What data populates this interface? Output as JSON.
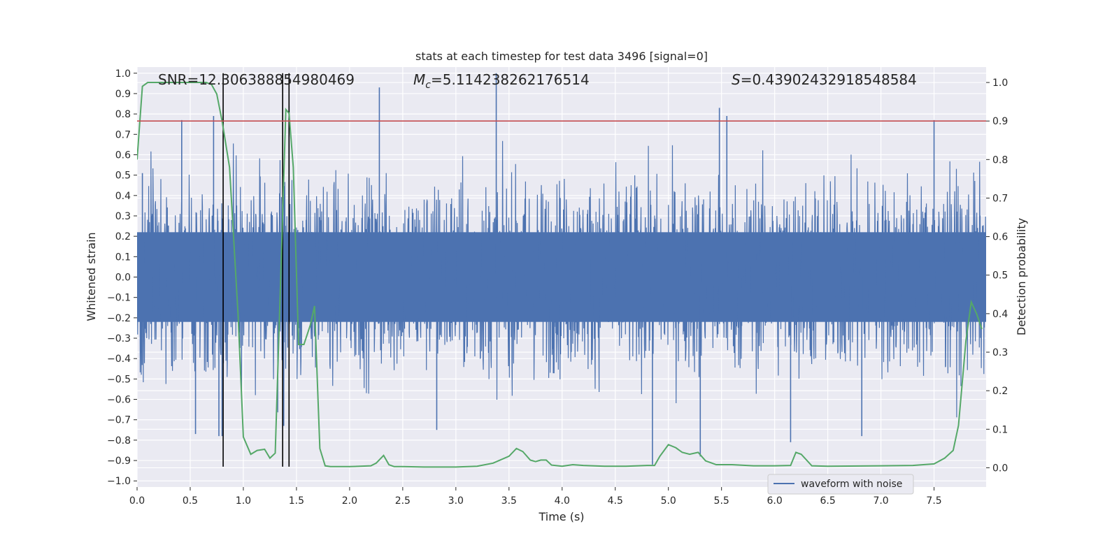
{
  "chart_data": {
    "type": "line",
    "title": "stats at each timestep for test data 3496 [signal=0]",
    "xlabel": "Time (s)",
    "ylabel_left": "Whitened strain",
    "ylabel_right": "Detection probability",
    "xlim": [
      0.0,
      7.99
    ],
    "ylim_left": [
      -1.03,
      1.03
    ],
    "ylim_right": [
      -0.05,
      1.04
    ],
    "x_ticks": [
      "0.0",
      "0.5",
      "1.0",
      "1.5",
      "2.0",
      "2.5",
      "3.0",
      "3.5",
      "4.0",
      "4.5",
      "5.0",
      "5.5",
      "6.0",
      "6.5",
      "7.0",
      "7.5"
    ],
    "y_ticks_left": [
      "-1.0",
      "-0.9",
      "-0.8",
      "-0.7",
      "-0.6",
      "-0.5",
      "-0.4",
      "-0.3",
      "-0.2",
      "-0.1",
      "0.0",
      "0.1",
      "0.2",
      "0.3",
      "0.4",
      "0.5",
      "0.6",
      "0.7",
      "0.8",
      "0.9",
      "1.0"
    ],
    "y_ticks_right": [
      "0.0",
      "0.1",
      "0.2",
      "0.3",
      "0.4",
      "0.5",
      "0.6",
      "0.7",
      "0.8",
      "0.9",
      "1.0"
    ],
    "grid": true,
    "legend_position": "lower-right",
    "annotations": {
      "snr": "SNR=12.306388854980469",
      "mc_symbol": "M",
      "mc_sub": "c",
      "mc_value": "=5.114238262176514",
      "s_symbol": "S",
      "s_value": "=0.43902432918548584"
    },
    "series": [
      {
        "name": "waveform with noise",
        "kind": "noise_band",
        "color": "#4c72b0",
        "approx_amplitude_range": [
          -0.62,
          0.62
        ],
        "peak_values": [
          {
            "x": 0.05,
            "y": 0.51
          },
          {
            "x": 0.42,
            "y": 0.77
          },
          {
            "x": 0.72,
            "y": 0.79
          },
          {
            "x": 1.43,
            "y": 0.84
          },
          {
            "x": 2.28,
            "y": 0.93
          },
          {
            "x": 3.38,
            "y": 1.0
          },
          {
            "x": 5.48,
            "y": 0.83
          },
          {
            "x": 5.55,
            "y": 0.79
          },
          {
            "x": 7.5,
            "y": 0.77
          }
        ],
        "trough_values": [
          {
            "x": 0.55,
            "y": -0.77
          },
          {
            "x": 0.77,
            "y": -0.78
          },
          {
            "x": 0.8,
            "y": -0.78
          },
          {
            "x": 1.38,
            "y": -0.73
          },
          {
            "x": 2.82,
            "y": -0.75
          },
          {
            "x": 4.85,
            "y": -0.92
          },
          {
            "x": 5.3,
            "y": -0.88
          },
          {
            "x": 6.15,
            "y": -0.81
          },
          {
            "x": 6.82,
            "y": -0.78
          }
        ]
      },
      {
        "kind": "detection_probability",
        "axis": "right",
        "color": "#55a868",
        "x": [
          0.0,
          0.05,
          0.1,
          0.2,
          0.3,
          0.4,
          0.5,
          0.6,
          0.65,
          0.7,
          0.75,
          0.8,
          0.87,
          0.95,
          1.0,
          1.07,
          1.13,
          1.2,
          1.25,
          1.3,
          1.35,
          1.4,
          1.43,
          1.47,
          1.52,
          1.57,
          1.63,
          1.67,
          1.72,
          1.77,
          1.82,
          2.0,
          2.2,
          2.25,
          2.32,
          2.37,
          2.42,
          2.5,
          2.7,
          3.0,
          3.2,
          3.35,
          3.5,
          3.57,
          3.63,
          3.7,
          3.75,
          3.8,
          3.85,
          3.9,
          4.0,
          4.1,
          4.2,
          4.4,
          4.6,
          4.8,
          4.87,
          4.92,
          5.0,
          5.07,
          5.13,
          5.2,
          5.28,
          5.35,
          5.45,
          5.6,
          5.8,
          6.0,
          6.15,
          6.2,
          6.25,
          6.35,
          6.5,
          7.0,
          7.3,
          7.5,
          7.6,
          7.68,
          7.73,
          7.8,
          7.85,
          7.9,
          7.95
        ],
        "y": [
          0.8,
          0.99,
          1.0,
          1.0,
          1.0,
          1.0,
          1.0,
          1.0,
          1.0,
          0.995,
          0.97,
          0.9,
          0.78,
          0.4,
          0.08,
          0.035,
          0.045,
          0.048,
          0.025,
          0.038,
          0.48,
          0.93,
          0.92,
          0.78,
          0.32,
          0.32,
          0.37,
          0.42,
          0.05,
          0.005,
          0.003,
          0.003,
          0.005,
          0.012,
          0.032,
          0.008,
          0.003,
          0.003,
          0.002,
          0.002,
          0.004,
          0.012,
          0.03,
          0.05,
          0.042,
          0.02,
          0.016,
          0.02,
          0.02,
          0.007,
          0.004,
          0.008,
          0.006,
          0.004,
          0.004,
          0.006,
          0.006,
          0.03,
          0.06,
          0.052,
          0.04,
          0.035,
          0.04,
          0.018,
          0.008,
          0.008,
          0.005,
          0.005,
          0.006,
          0.04,
          0.035,
          0.005,
          0.004,
          0.005,
          0.006,
          0.01,
          0.025,
          0.045,
          0.11,
          0.33,
          0.43,
          0.4,
          0.36
        ]
      }
    ],
    "threshold_line": {
      "axis": "right",
      "value": 0.9,
      "color": "#c44e52"
    },
    "vertical_markers_x": [
      0.81,
      1.37,
      1.43
    ],
    "vertical_marker_y_range": [
      -0.93,
      1.0
    ],
    "vertical_marker_color": "#000000"
  }
}
